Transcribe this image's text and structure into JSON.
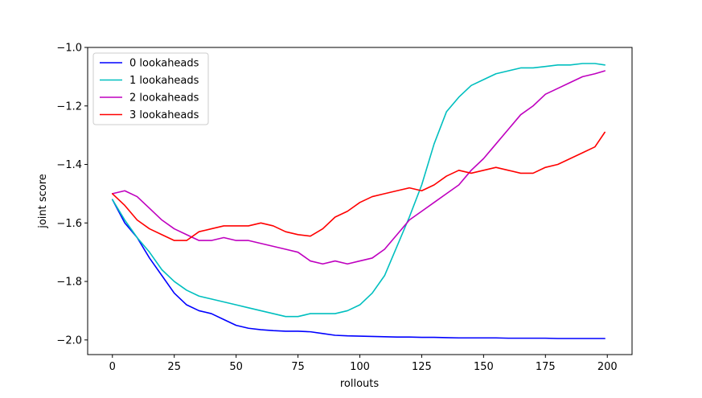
{
  "chart_data": {
    "type": "line",
    "title": "",
    "xlabel": "rollouts",
    "ylabel": "joint score",
    "xlim": [
      -10,
      210
    ],
    "ylim": [
      -2.05,
      -1.0
    ],
    "xticks": [
      0,
      25,
      50,
      75,
      100,
      125,
      150,
      175,
      200
    ],
    "xtick_labels": [
      "0",
      "25",
      "50",
      "75",
      "100",
      "125",
      "150",
      "175",
      "200"
    ],
    "yticks": [
      -2.0,
      -1.8,
      -1.6,
      -1.4,
      -1.2,
      -1.0
    ],
    "ytick_labels": [
      "−2.0",
      "−1.8",
      "−1.6",
      "−1.4",
      "−1.2",
      "−1.0"
    ],
    "legend_position": "top-left",
    "x": [
      0,
      5,
      10,
      15,
      20,
      25,
      30,
      35,
      40,
      45,
      50,
      55,
      60,
      65,
      70,
      75,
      80,
      85,
      90,
      95,
      100,
      105,
      110,
      115,
      120,
      125,
      130,
      135,
      140,
      145,
      150,
      155,
      160,
      165,
      170,
      175,
      180,
      185,
      190,
      195,
      199
    ],
    "series": [
      {
        "name": "0 lookaheads",
        "color": "#0000ff",
        "values": [
          -1.52,
          -1.6,
          -1.65,
          -1.72,
          -1.78,
          -1.84,
          -1.88,
          -1.9,
          -1.91,
          -1.93,
          -1.95,
          -1.96,
          -1.965,
          -1.968,
          -1.97,
          -1.97,
          -1.972,
          -1.978,
          -1.984,
          -1.986,
          -1.987,
          -1.988,
          -1.989,
          -1.99,
          -1.99,
          -1.991,
          -1.991,
          -1.992,
          -1.993,
          -1.993,
          -1.993,
          -1.993,
          -1.994,
          -1.994,
          -1.994,
          -1.994,
          -1.995,
          -1.995,
          -1.995,
          -1.995,
          -1.995
        ]
      },
      {
        "name": "1 lookaheads",
        "color": "#00bfbf",
        "values": [
          -1.52,
          -1.59,
          -1.65,
          -1.7,
          -1.76,
          -1.8,
          -1.83,
          -1.85,
          -1.86,
          -1.87,
          -1.88,
          -1.89,
          -1.9,
          -1.91,
          -1.92,
          -1.92,
          -1.91,
          -1.91,
          -1.91,
          -1.9,
          -1.88,
          -1.84,
          -1.78,
          -1.68,
          -1.58,
          -1.47,
          -1.33,
          -1.22,
          -1.17,
          -1.13,
          -1.11,
          -1.09,
          -1.08,
          -1.07,
          -1.07,
          -1.065,
          -1.06,
          -1.06,
          -1.055,
          -1.055,
          -1.06
        ]
      },
      {
        "name": "2 lookaheads",
        "color": "#bf00bf",
        "values": [
          -1.5,
          -1.49,
          -1.51,
          -1.55,
          -1.59,
          -1.62,
          -1.64,
          -1.66,
          -1.66,
          -1.65,
          -1.66,
          -1.66,
          -1.67,
          -1.68,
          -1.69,
          -1.7,
          -1.73,
          -1.74,
          -1.73,
          -1.74,
          -1.73,
          -1.72,
          -1.69,
          -1.64,
          -1.59,
          -1.56,
          -1.53,
          -1.5,
          -1.47,
          -1.42,
          -1.38,
          -1.33,
          -1.28,
          -1.23,
          -1.2,
          -1.16,
          -1.14,
          -1.12,
          -1.1,
          -1.09,
          -1.08
        ]
      },
      {
        "name": "3 lookaheads",
        "color": "#ff0000",
        "values": [
          -1.5,
          -1.54,
          -1.59,
          -1.62,
          -1.64,
          -1.66,
          -1.66,
          -1.63,
          -1.62,
          -1.61,
          -1.61,
          -1.61,
          -1.6,
          -1.61,
          -1.63,
          -1.64,
          -1.645,
          -1.62,
          -1.58,
          -1.56,
          -1.53,
          -1.51,
          -1.5,
          -1.49,
          -1.48,
          -1.49,
          -1.47,
          -1.44,
          -1.42,
          -1.43,
          -1.42,
          -1.41,
          -1.42,
          -1.43,
          -1.43,
          -1.41,
          -1.4,
          -1.38,
          -1.36,
          -1.34,
          -1.29
        ]
      }
    ]
  }
}
